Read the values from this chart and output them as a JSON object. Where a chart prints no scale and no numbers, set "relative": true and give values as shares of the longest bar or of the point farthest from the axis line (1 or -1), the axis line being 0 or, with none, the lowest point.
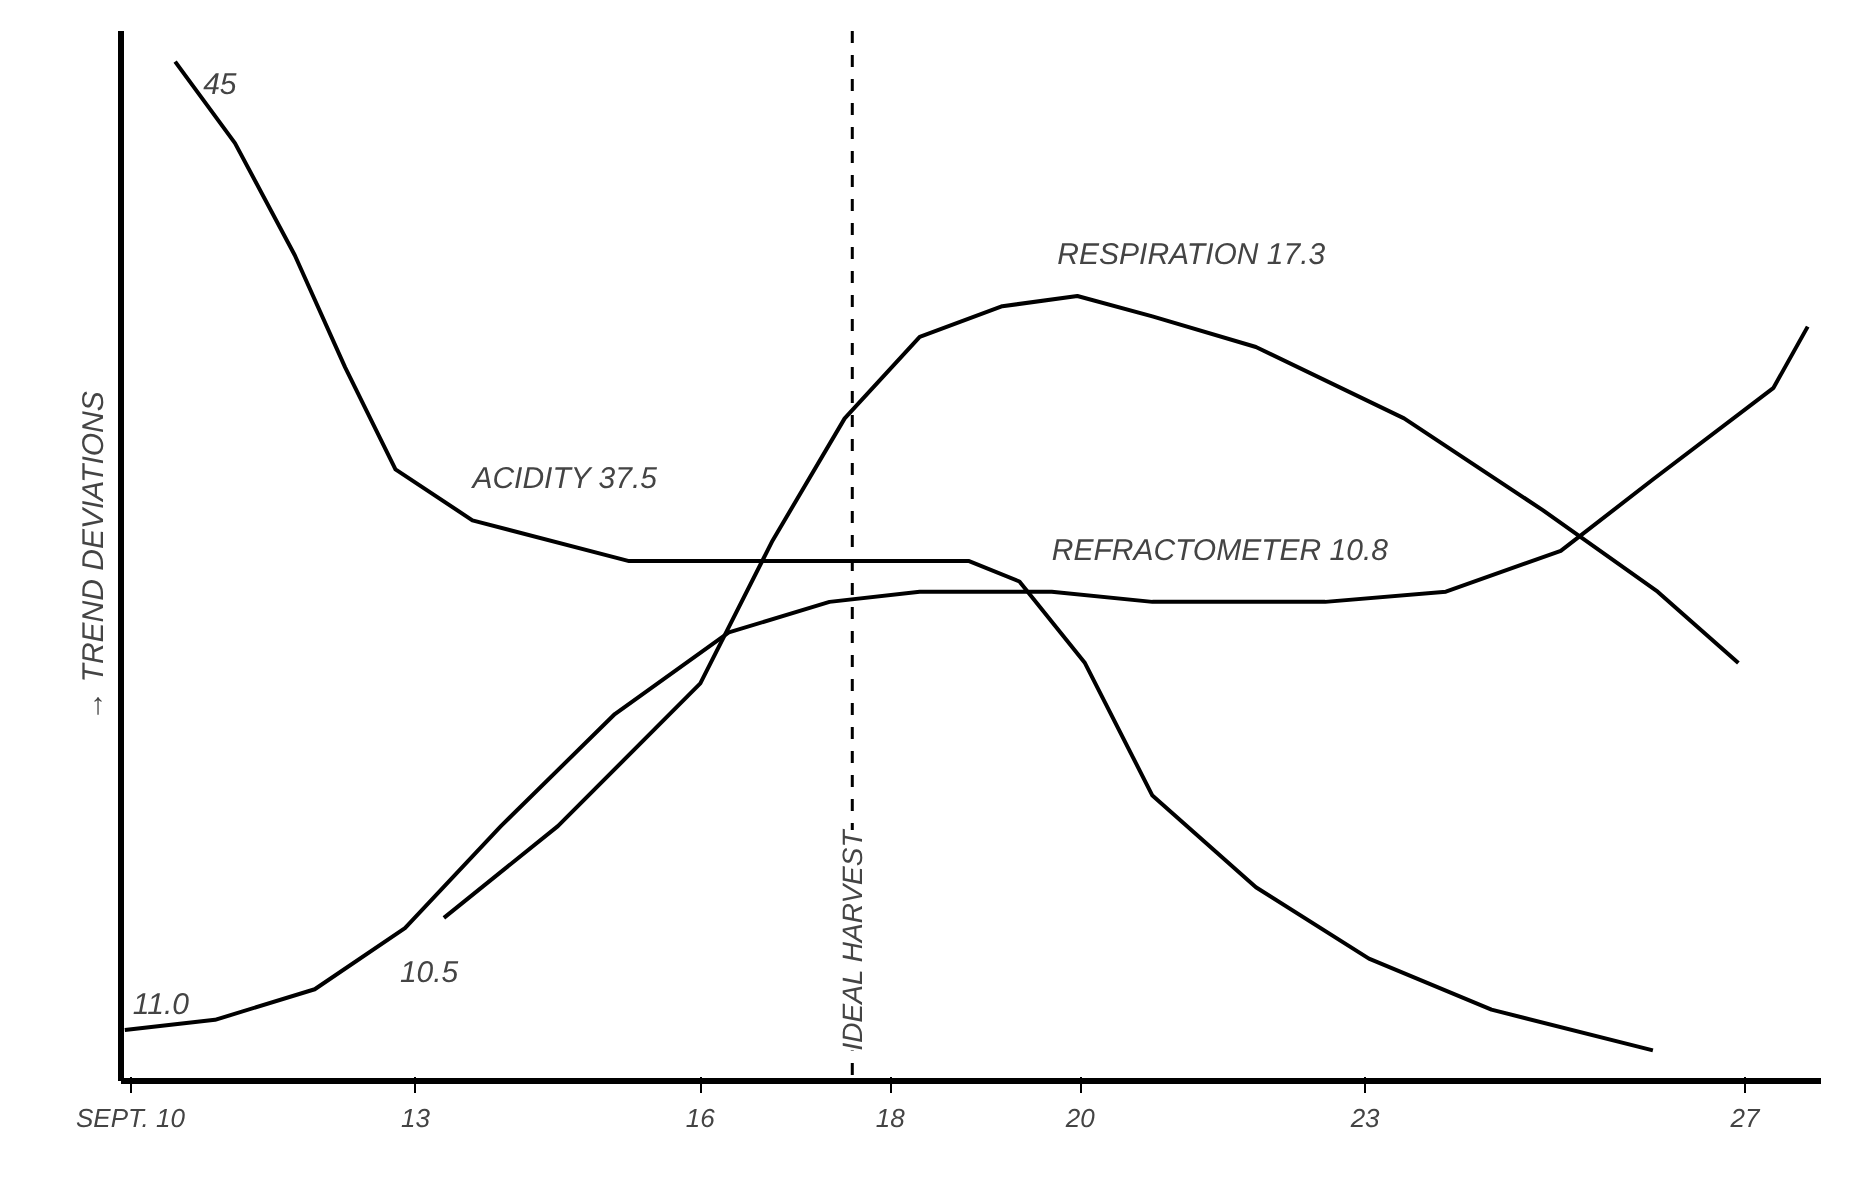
{
  "chart_data": {
    "type": "line",
    "relative": true,
    "ylabel": "→ TREND DEVIATIONS",
    "xlim": [
      9.9,
      27.8
    ],
    "xticks": [
      {
        "value": 10,
        "label": "SEPT. 10"
      },
      13,
      16,
      18,
      20,
      23,
      27
    ],
    "series": [
      {
        "name": "ACIDITY 37.5",
        "color": "#000000",
        "x": [
          10.47,
          11.1,
          11.73,
          12.26,
          12.79,
          13.6,
          15.25,
          17.06,
          18.83,
          19.36,
          20.05,
          20.76,
          21.85,
          23.04,
          24.33,
          26.03
        ],
        "values": [
          1.0,
          0.92,
          0.81,
          0.7,
          0.6,
          0.55,
          0.51,
          0.51,
          0.51,
          0.49,
          0.41,
          0.28,
          0.19,
          0.12,
          0.07,
          0.03
        ]
      },
      {
        "name": "RESPIRATION 17.3",
        "color": "#000000",
        "x": [
          13.3,
          14.5,
          16,
          16.76,
          17.52,
          18.31,
          19.18,
          19.97,
          20.76,
          21.85,
          23.41,
          24.87,
          26.08,
          26.93
        ],
        "values": [
          0.16,
          0.25,
          0.39,
          0.53,
          0.65,
          0.73,
          0.76,
          0.77,
          0.75,
          0.72,
          0.65,
          0.56,
          0.48,
          0.41
        ]
      },
      {
        "name": "REFRACTOMETER 10.8",
        "color": "#000000",
        "x": [
          9.94,
          10.89,
          11.94,
          12.89,
          13.9,
          15.1,
          16.3,
          17.36,
          18.31,
          19.7,
          20.76,
          22.58,
          23.85,
          25.06,
          26.03,
          27.3,
          27.66
        ],
        "values": [
          0.05,
          0.06,
          0.09,
          0.15,
          0.25,
          0.36,
          0.44,
          0.47,
          0.48,
          0.48,
          0.47,
          0.47,
          0.48,
          0.52,
          0.59,
          0.68,
          0.74
        ]
      }
    ],
    "annotations": [
      {
        "text": "45",
        "x": 10.47,
        "y": 1.0
      },
      {
        "text": "11.0",
        "x": 9.94,
        "y": 0.05
      },
      {
        "text": "10.5",
        "x": 13.3,
        "y": 0.16
      }
    ],
    "ref_lines": [
      {
        "axis": "x",
        "value": 17.6,
        "label": "IDEAL HARVEST",
        "line_style": "dashed"
      }
    ],
    "grid": false
  }
}
